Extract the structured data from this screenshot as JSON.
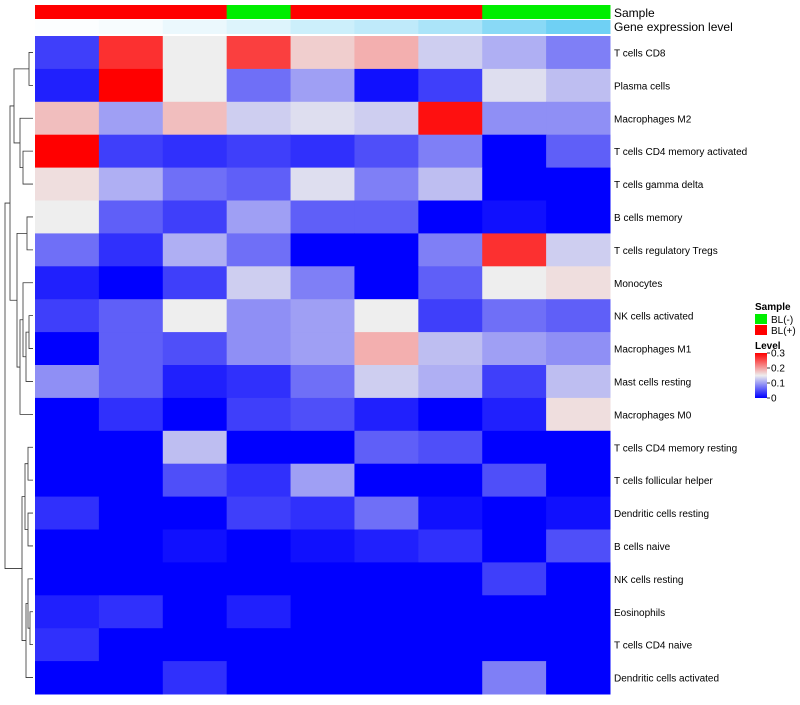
{
  "chart_data": {
    "type": "heatmap",
    "annotation_tracks": [
      {
        "name": "Sample",
        "values": [
          "BL(+)",
          "BL(+)",
          "BL(+)",
          "BL(-)",
          "BL(+)",
          "BL(+)",
          "BL(+)",
          "BL(-)",
          "BL(-)"
        ]
      },
      {
        "name": "Gene expression level",
        "values": [
          0.02,
          0.05,
          0.12,
          0.2,
          0.3,
          0.38,
          0.5,
          0.7,
          0.85
        ]
      }
    ],
    "rows": [
      "T cells CD8",
      "Plasma cells",
      "Macrophages M2",
      "T cells CD4 memory activated",
      "T cells gamma delta",
      "B cells memory",
      "T cells regulatory  Tregs",
      "Monocytes",
      "NK cells activated",
      "Macrophages M1",
      "Mast cells resting",
      "Macrophages M0",
      "T cells CD4 memory resting",
      "T cells follicular helper",
      "Dendritic cells resting",
      "B cells naive",
      "NK cells resting",
      "Eosinophils",
      "T cells CD4 naive",
      "Dendritic cells activated"
    ],
    "values": [
      [
        0.04,
        0.27,
        0.15,
        0.26,
        0.17,
        0.19,
        0.13,
        0.11,
        0.08
      ],
      [
        0.02,
        0.3,
        0.15,
        0.07,
        0.1,
        0.01,
        0.04,
        0.14,
        0.12
      ],
      [
        0.18,
        0.1,
        0.18,
        0.13,
        0.14,
        0.13,
        0.29,
        0.09,
        0.09
      ],
      [
        0.3,
        0.04,
        0.03,
        0.04,
        0.03,
        0.05,
        0.08,
        0.0,
        0.06
      ],
      [
        0.16,
        0.11,
        0.07,
        0.06,
        0.14,
        0.08,
        0.12,
        0.0,
        0.0
      ],
      [
        0.15,
        0.06,
        0.04,
        0.1,
        0.06,
        0.06,
        0.0,
        0.01,
        0.0
      ],
      [
        0.07,
        0.03,
        0.11,
        0.07,
        0.0,
        0.0,
        0.08,
        0.27,
        0.13
      ],
      [
        0.02,
        0.0,
        0.04,
        0.13,
        0.08,
        0.0,
        0.06,
        0.15,
        0.16
      ],
      [
        0.04,
        0.06,
        0.15,
        0.09,
        0.1,
        0.15,
        0.04,
        0.07,
        0.06
      ],
      [
        0.0,
        0.06,
        0.05,
        0.09,
        0.1,
        0.19,
        0.12,
        0.1,
        0.09
      ],
      [
        0.09,
        0.06,
        0.02,
        0.03,
        0.07,
        0.13,
        0.11,
        0.04,
        0.12
      ],
      [
        0.0,
        0.03,
        0.0,
        0.04,
        0.05,
        0.02,
        0.0,
        0.02,
        0.16
      ],
      [
        0.0,
        0.0,
        0.12,
        0.0,
        0.0,
        0.06,
        0.05,
        0.0,
        0.0
      ],
      [
        0.0,
        0.0,
        0.05,
        0.03,
        0.1,
        0.0,
        0.0,
        0.05,
        0.0
      ],
      [
        0.03,
        0.0,
        0.0,
        0.04,
        0.03,
        0.07,
        0.01,
        0.0,
        0.01
      ],
      [
        0.0,
        0.0,
        0.01,
        0.0,
        0.01,
        0.02,
        0.03,
        0.0,
        0.05
      ],
      [
        0.0,
        0.0,
        0.0,
        0.0,
        0.0,
        0.0,
        0.0,
        0.04,
        0.0
      ],
      [
        0.02,
        0.03,
        0.0,
        0.02,
        0.0,
        0.0,
        0.0,
        0.0,
        0.0
      ],
      [
        0.03,
        0.0,
        0.0,
        0.0,
        0.0,
        0.0,
        0.0,
        0.0,
        0.0
      ],
      [
        0.0,
        0.0,
        0.03,
        0.0,
        0.0,
        0.0,
        0.0,
        0.08,
        0.0
      ]
    ],
    "color_scale": {
      "min": 0,
      "max": 0.3,
      "stops": [
        {
          "value": 0,
          "color": "#0000ff"
        },
        {
          "value": 0.15,
          "color": "#eeeeee"
        },
        {
          "value": 0.3,
          "color": "#ff0000"
        }
      ]
    },
    "sample_colors": {
      "BL(-)": "#00ee00",
      "BL(+)": "#ff0000"
    },
    "expression_track_colors": [
      "#ffffff",
      "#56c8f2"
    ],
    "legend": {
      "sample_title": "Sample",
      "sample_entries": [
        "BL(-)",
        "BL(+)"
      ],
      "level_title": "Level",
      "level_ticks": [
        "0.3",
        "0.2",
        "0.1",
        "0"
      ],
      "level_tick_values": [
        0.3,
        0.2,
        0.1,
        0
      ],
      "placement": "right"
    },
    "row_dendrogram": true
  }
}
